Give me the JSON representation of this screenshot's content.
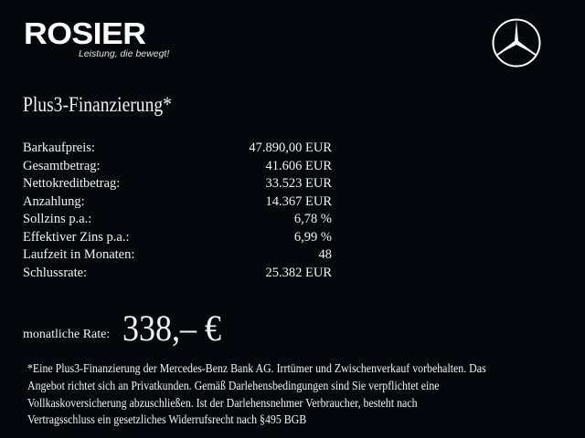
{
  "brand": {
    "name": "ROSIER",
    "tagline": "Leistung, die bewegt!"
  },
  "title": "Plus3-Finanzierung*",
  "rows": [
    {
      "label": "Barkaufpreis:",
      "value": "47.890,00 EUR"
    },
    {
      "label": "Gesamtbetrag:",
      "value": "41.606 EUR"
    },
    {
      "label": "Nettokreditbetrag:",
      "value": "33.523 EUR"
    },
    {
      "label": "Anzahlung:",
      "value": "14.367 EUR"
    },
    {
      "label": "Sollzins p.a.:",
      "value": "6,78 %"
    },
    {
      "label": "Effektiver Zins p.a.:",
      "value": "6,99 %"
    },
    {
      "label": "Laufzeit in Monaten:",
      "value": "48"
    },
    {
      "label": "Schlussrate:",
      "value": "25.382 EUR"
    }
  ],
  "monthly": {
    "label": "monatliche Rate:",
    "value": "338,– €"
  },
  "footnote": [
    "*Eine Plus3-Finanzierung der Mercedes-Benz Bank AG. Irrtümer und Zwischenverkauf vorbehalten. Das",
    "Angebot richtet sich an Privatkunden. Gemäß Darlehensbedingungen sind Sie verpflichtet eine",
    "Vollkaskoversicherung abzuschließen. Ist der Darlehensnehmer Verbraucher, besteht nach",
    "Vertragsschluss ein gesetzliches Widerrufsrecht nach §495 BGB"
  ],
  "colors": {
    "background": "#04080c",
    "text": "#f2f2f2"
  },
  "icons": {
    "right_logo": "mercedes-star-icon"
  }
}
